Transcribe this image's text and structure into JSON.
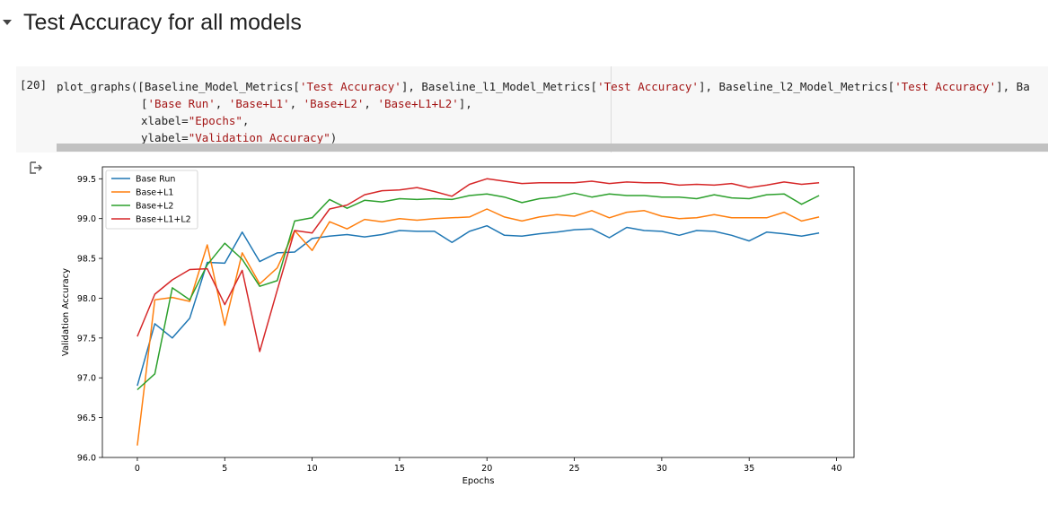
{
  "section": {
    "title": "Test Accuracy for all models"
  },
  "cell": {
    "exec_count": "[20]",
    "lines": [
      [
        {
          "t": "plot_graphs([Baseline_Model_Metrics[",
          "c": ""
        },
        {
          "t": "'Test Accuracy'",
          "c": "str"
        },
        {
          "t": "], Baseline_l1_Model_Metrics[",
          "c": ""
        },
        {
          "t": "'Test Accuracy'",
          "c": "str"
        },
        {
          "t": "], Baseline_l2_Model_Metrics[",
          "c": ""
        },
        {
          "t": "'Test Accuracy'",
          "c": "str"
        },
        {
          "t": "], Ba",
          "c": ""
        }
      ],
      [
        {
          "t": "[",
          "c": ""
        },
        {
          "t": "'Base Run'",
          "c": "str"
        },
        {
          "t": ", ",
          "c": ""
        },
        {
          "t": "'Base+L1'",
          "c": "str"
        },
        {
          "t": ", ",
          "c": ""
        },
        {
          "t": "'Base+L2'",
          "c": "str"
        },
        {
          "t": ", ",
          "c": ""
        },
        {
          "t": "'Base+L1+L2'",
          "c": "str"
        },
        {
          "t": "],",
          "c": ""
        }
      ],
      [
        {
          "t": "xlabel=",
          "c": ""
        },
        {
          "t": "\"Epochs\"",
          "c": "str"
        },
        {
          "t": ",",
          "c": ""
        }
      ],
      [
        {
          "t": "ylabel=",
          "c": ""
        },
        {
          "t": "\"Validation Accuracy\"",
          "c": "str"
        },
        {
          "t": ")",
          "c": ""
        }
      ]
    ]
  },
  "icons": {
    "output": "output-redirect-icon",
    "collapse": "collapse-arrow-icon"
  },
  "chart_data": {
    "type": "line",
    "xlabel": "Epochs",
    "ylabel": "Validation Accuracy",
    "xlim": [
      -2,
      41
    ],
    "ylim": [
      96.0,
      99.65
    ],
    "xticks": [
      0,
      5,
      10,
      15,
      20,
      25,
      30,
      35,
      40
    ],
    "yticks": [
      96.0,
      96.5,
      97.0,
      97.5,
      98.0,
      98.5,
      99.0,
      99.5
    ],
    "grid": false,
    "legend_position": "top-left",
    "x": [
      0,
      1,
      2,
      3,
      4,
      5,
      6,
      7,
      8,
      9,
      10,
      11,
      12,
      13,
      14,
      15,
      16,
      17,
      18,
      19,
      20,
      21,
      22,
      23,
      24,
      25,
      26,
      27,
      28,
      29,
      30,
      31,
      32,
      33,
      34,
      35,
      36,
      37,
      38,
      39
    ],
    "series": [
      {
        "name": "Base Run",
        "color": "#1f77b4",
        "values": [
          96.9,
          97.68,
          97.5,
          97.75,
          98.45,
          98.44,
          98.83,
          98.46,
          98.57,
          98.58,
          98.75,
          98.78,
          98.8,
          98.77,
          98.8,
          98.85,
          98.84,
          98.84,
          98.7,
          98.84,
          98.91,
          98.79,
          98.78,
          98.81,
          98.83,
          98.86,
          98.87,
          98.76,
          98.89,
          98.85,
          98.84,
          98.79,
          98.85,
          98.84,
          98.79,
          98.72,
          98.83,
          98.81,
          98.78,
          98.82
        ]
      },
      {
        "name": "Base+L1",
        "color": "#ff7f0e",
        "values": [
          96.15,
          97.98,
          98.01,
          97.96,
          98.67,
          97.66,
          98.57,
          98.18,
          98.38,
          98.85,
          98.6,
          98.96,
          98.87,
          98.99,
          98.96,
          99.0,
          98.98,
          99.0,
          99.01,
          99.02,
          99.12,
          99.02,
          98.97,
          99.02,
          99.05,
          99.03,
          99.1,
          99.01,
          99.08,
          99.1,
          99.03,
          99.0,
          99.01,
          99.05,
          99.01,
          99.01,
          99.01,
          99.08,
          98.97,
          99.02
        ]
      },
      {
        "name": "Base+L2",
        "color": "#2ca02c",
        "values": [
          96.85,
          97.05,
          98.13,
          97.98,
          98.42,
          98.69,
          98.49,
          98.15,
          98.22,
          98.97,
          99.01,
          99.24,
          99.13,
          99.23,
          99.21,
          99.25,
          99.24,
          99.25,
          99.24,
          99.29,
          99.31,
          99.27,
          99.2,
          99.25,
          99.27,
          99.32,
          99.27,
          99.31,
          99.29,
          99.29,
          99.27,
          99.27,
          99.25,
          99.3,
          99.26,
          99.25,
          99.3,
          99.31,
          99.18,
          99.29
        ]
      },
      {
        "name": "Base+L1+L2",
        "color": "#d62728",
        "values": [
          97.52,
          98.05,
          98.23,
          98.36,
          98.37,
          97.92,
          98.35,
          97.33,
          98.1,
          98.85,
          98.82,
          99.12,
          99.17,
          99.3,
          99.35,
          99.36,
          99.39,
          99.34,
          99.28,
          99.43,
          99.5,
          99.47,
          99.44,
          99.45,
          99.45,
          99.45,
          99.47,
          99.44,
          99.46,
          99.45,
          99.45,
          99.42,
          99.43,
          99.42,
          99.44,
          99.39,
          99.42,
          99.46,
          99.43,
          99.45
        ]
      }
    ]
  }
}
